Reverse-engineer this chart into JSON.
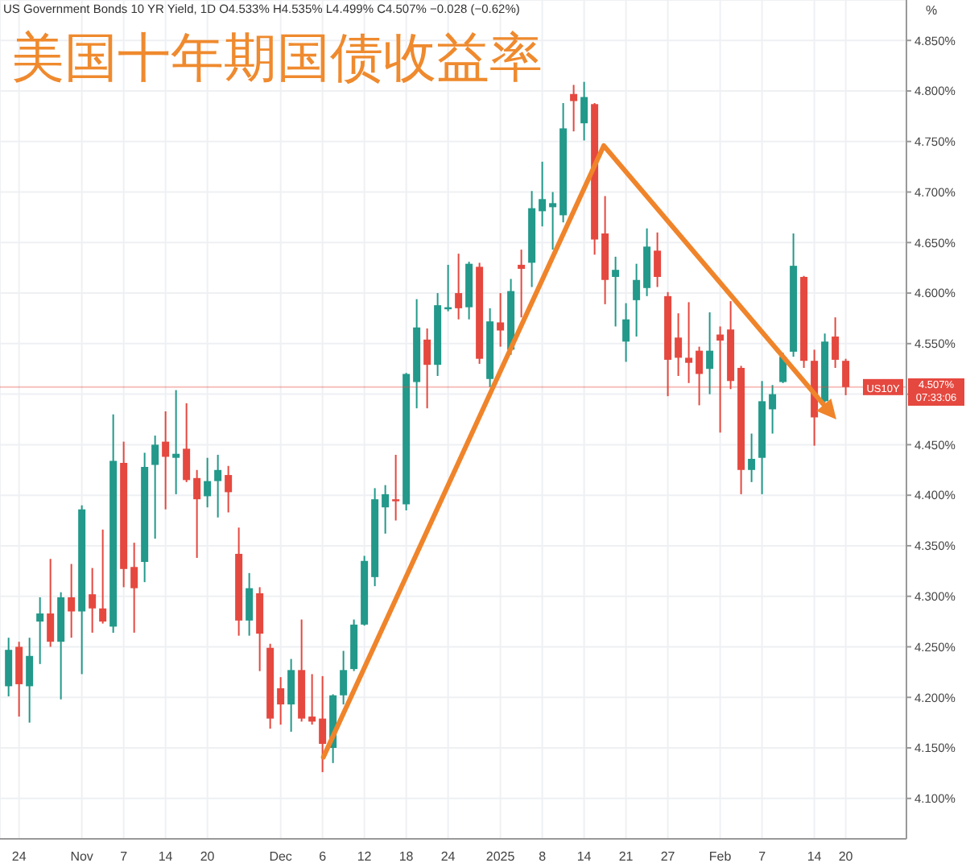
{
  "chart_data": {
    "type": "candlestick",
    "title": "美国十年期国债收益率",
    "subtitle": "US Government Bonds 10 YR Yield, 1D  O4.533%  H4.535%  L4.499%  C4.507%  −0.028 (−0.62%)",
    "ylabel": "%",
    "categories": [
      null,
      "24",
      null,
      null,
      null,
      null,
      null,
      "Nov",
      null,
      null,
      null,
      "7",
      null,
      null,
      null,
      "14",
      null,
      null,
      null,
      "20",
      null,
      null,
      null,
      null,
      null,
      null,
      "Dec",
      null,
      null,
      null,
      "6",
      null,
      null,
      null,
      "12",
      null,
      null,
      null,
      "18",
      null,
      null,
      null,
      "24",
      null,
      null,
      null,
      null,
      "2025",
      null,
      null,
      null,
      "8",
      null,
      null,
      null,
      "14",
      null,
      null,
      null,
      "21",
      null,
      null,
      null,
      "27",
      null,
      null,
      null,
      null,
      "Feb",
      null,
      null,
      null,
      "7",
      null,
      null,
      null,
      null,
      "14",
      null,
      null,
      "20"
    ],
    "ohlc": [
      [
        4.211,
        4.259,
        4.201,
        4.247
      ],
      [
        4.25,
        4.255,
        4.181,
        4.213
      ],
      [
        4.211,
        4.259,
        4.175,
        4.241
      ],
      [
        4.275,
        4.299,
        4.233,
        4.283
      ],
      [
        4.283,
        4.337,
        4.25,
        4.255
      ],
      [
        4.255,
        4.304,
        4.198,
        4.299
      ],
      [
        4.299,
        4.332,
        4.259,
        4.285
      ],
      [
        4.285,
        4.39,
        4.223,
        4.386
      ],
      [
        4.302,
        4.328,
        4.264,
        4.288
      ],
      [
        4.288,
        4.366,
        4.273,
        4.275
      ],
      [
        4.27,
        4.48,
        4.264,
        4.434
      ],
      [
        4.432,
        4.453,
        4.309,
        4.327
      ],
      [
        4.329,
        4.353,
        4.264,
        4.308
      ],
      [
        4.334,
        4.442,
        4.314,
        4.428
      ],
      [
        4.43,
        4.459,
        4.357,
        4.45
      ],
      [
        4.453,
        4.483,
        4.386,
        4.438
      ],
      [
        4.437,
        4.504,
        4.401,
        4.441
      ],
      [
        4.446,
        4.491,
        4.413,
        4.415
      ],
      [
        4.417,
        4.425,
        4.338,
        4.396
      ],
      [
        4.399,
        4.437,
        4.388,
        4.414
      ],
      [
        4.414,
        4.44,
        4.378,
        4.425
      ],
      [
        4.42,
        4.429,
        4.383,
        4.403
      ],
      [
        4.342,
        4.368,
        4.261,
        4.276
      ],
      [
        4.276,
        4.323,
        4.261,
        4.308
      ],
      [
        4.303,
        4.309,
        4.226,
        4.263
      ],
      [
        4.249,
        4.253,
        4.169,
        4.179
      ],
      [
        4.209,
        4.22,
        4.173,
        4.193
      ],
      [
        4.193,
        4.238,
        4.166,
        4.227
      ],
      [
        4.227,
        4.277,
        4.176,
        4.179
      ],
      [
        4.181,
        4.223,
        4.173,
        4.176
      ],
      [
        4.179,
        4.221,
        4.126,
        4.154
      ],
      [
        4.15,
        4.203,
        4.135,
        4.202
      ],
      [
        4.202,
        4.246,
        4.193,
        4.227
      ],
      [
        4.228,
        4.277,
        4.226,
        4.272
      ],
      [
        4.272,
        4.34,
        4.271,
        4.335
      ],
      [
        4.319,
        4.407,
        4.31,
        4.396
      ],
      [
        4.388,
        4.41,
        4.362,
        4.401
      ],
      [
        4.396,
        4.44,
        4.375,
        4.394
      ],
      [
        4.391,
        4.521,
        4.385,
        4.52
      ],
      [
        4.512,
        4.594,
        4.486,
        4.566
      ],
      [
        4.554,
        4.565,
        4.486,
        4.529
      ],
      [
        4.529,
        4.6,
        4.518,
        4.588
      ],
      [
        4.584,
        4.628,
        4.582,
        4.586
      ],
      [
        4.6,
        4.639,
        4.574,
        4.585
      ],
      [
        4.586,
        4.631,
        4.574,
        4.629
      ],
      [
        4.626,
        4.63,
        4.53,
        4.535
      ],
      [
        4.515,
        4.585,
        4.507,
        4.572
      ],
      [
        4.571,
        4.6,
        4.547,
        4.563
      ],
      [
        4.544,
        4.614,
        4.539,
        4.602
      ],
      [
        4.628,
        4.643,
        4.576,
        4.624
      ],
      [
        4.63,
        4.701,
        4.606,
        4.684
      ],
      [
        4.681,
        4.73,
        4.666,
        4.693
      ],
      [
        4.685,
        4.7,
        4.643,
        4.689
      ],
      [
        4.677,
        4.788,
        4.67,
        4.763
      ],
      [
        4.797,
        4.806,
        4.76,
        4.79
      ],
      [
        4.768,
        4.809,
        4.751,
        4.794
      ],
      [
        4.787,
        4.788,
        4.638,
        4.653
      ],
      [
        4.659,
        4.696,
        4.589,
        4.613
      ],
      [
        4.616,
        4.636,
        4.567,
        4.623
      ],
      [
        4.552,
        4.59,
        4.532,
        4.574
      ],
      [
        4.593,
        4.629,
        4.557,
        4.613
      ],
      [
        4.605,
        4.664,
        4.597,
        4.646
      ],
      [
        4.642,
        4.66,
        4.606,
        4.616
      ],
      [
        4.597,
        4.601,
        4.498,
        4.534
      ],
      [
        4.556,
        4.58,
        4.518,
        4.536
      ],
      [
        4.536,
        4.591,
        4.511,
        4.531
      ],
      [
        4.543,
        4.547,
        4.489,
        4.52
      ],
      [
        4.525,
        4.581,
        4.5,
        4.543
      ],
      [
        4.559,
        4.567,
        4.462,
        4.553
      ],
      [
        4.564,
        4.592,
        4.505,
        4.513
      ],
      [
        4.526,
        4.528,
        4.401,
        4.425
      ],
      [
        4.425,
        4.461,
        4.413,
        4.436
      ],
      [
        4.437,
        4.513,
        4.401,
        4.493
      ],
      [
        4.485,
        4.509,
        4.461,
        4.5
      ],
      [
        4.512,
        4.541,
        4.511,
        4.537
      ],
      [
        4.542,
        4.659,
        4.537,
        4.627
      ],
      [
        4.616,
        4.617,
        4.526,
        4.533
      ],
      [
        4.533,
        4.544,
        4.449,
        4.477
      ],
      [
        4.493,
        4.56,
        4.492,
        4.552
      ],
      [
        4.557,
        4.576,
        4.526,
        4.534
      ],
      [
        4.533,
        4.535,
        4.499,
        4.507
      ]
    ],
    "colors": [
      "#22998a",
      "#e5483f",
      "#22998a",
      "#22998a",
      "#e5483f",
      "#22998a",
      "#e5483f",
      "#22998a",
      "#e5483f",
      "#e5483f",
      "#22998a",
      "#e5483f",
      "#e5483f",
      "#22998a",
      "#22998a",
      "#e5483f",
      "#22998a",
      "#e5483f",
      "#e5483f",
      "#22998a",
      "#22998a",
      "#e5483f",
      "#e5483f",
      "#22998a",
      "#e5483f",
      "#e5483f",
      "#e5483f",
      "#22998a",
      "#e5483f",
      "#e5483f",
      "#e5483f",
      "#22998a",
      "#22998a",
      "#22998a",
      "#22998a",
      "#22998a",
      "#22998a",
      "#e5483f",
      "#22998a",
      "#22998a",
      "#e5483f",
      "#22998a",
      "#22998a",
      "#e5483f",
      "#22998a",
      "#e5483f",
      "#22998a",
      "#e5483f",
      "#22998a",
      "#e5483f",
      "#22998a",
      "#22998a",
      "#22998a",
      "#22998a",
      "#e5483f",
      "#22998a",
      "#e5483f",
      "#e5483f",
      "#22998a",
      "#22998a",
      "#22998a",
      "#22998a",
      "#e5483f",
      "#e5483f",
      "#e5483f",
      "#e5483f",
      "#e5483f",
      "#22998a",
      "#e5483f",
      "#e5483f",
      "#e5483f",
      "#22998a",
      "#22998a",
      "#22998a",
      "#22998a",
      "#22998a",
      "#e5483f",
      "#e5483f",
      "#22998a",
      "#e5483f",
      "#e5483f"
    ],
    "ylim": [
      4.06,
      4.89
    ],
    "yticks": [
      {
        "value": 4.1,
        "label": "4.100%"
      },
      {
        "value": 4.15,
        "label": "4.150%"
      },
      {
        "value": 4.2,
        "label": "4.200%"
      },
      {
        "value": 4.25,
        "label": "4.250%"
      },
      {
        "value": 4.3,
        "label": "4.300%"
      },
      {
        "value": 4.35,
        "label": "4.350%"
      },
      {
        "value": 4.4,
        "label": "4.400%"
      },
      {
        "value": 4.45,
        "label": "4.450%"
      },
      {
        "value": 4.5,
        "label": null
      },
      {
        "value": 4.55,
        "label": "4.550%"
      },
      {
        "value": 4.6,
        "label": "4.600%"
      },
      {
        "value": 4.65,
        "label": "4.650%"
      },
      {
        "value": 4.7,
        "label": "4.700%"
      },
      {
        "value": 4.75,
        "label": "4.750%"
      },
      {
        "value": 4.8,
        "label": "4.800%"
      },
      {
        "value": 4.85,
        "label": "4.850%"
      }
    ],
    "ref_lines": [
      {
        "axis": "y",
        "value": 4.507,
        "label": "US10Y",
        "color": "#e5483f"
      }
    ],
    "annotations": [
      "4.507%",
      "07:33:06"
    ],
    "grid": true
  }
}
